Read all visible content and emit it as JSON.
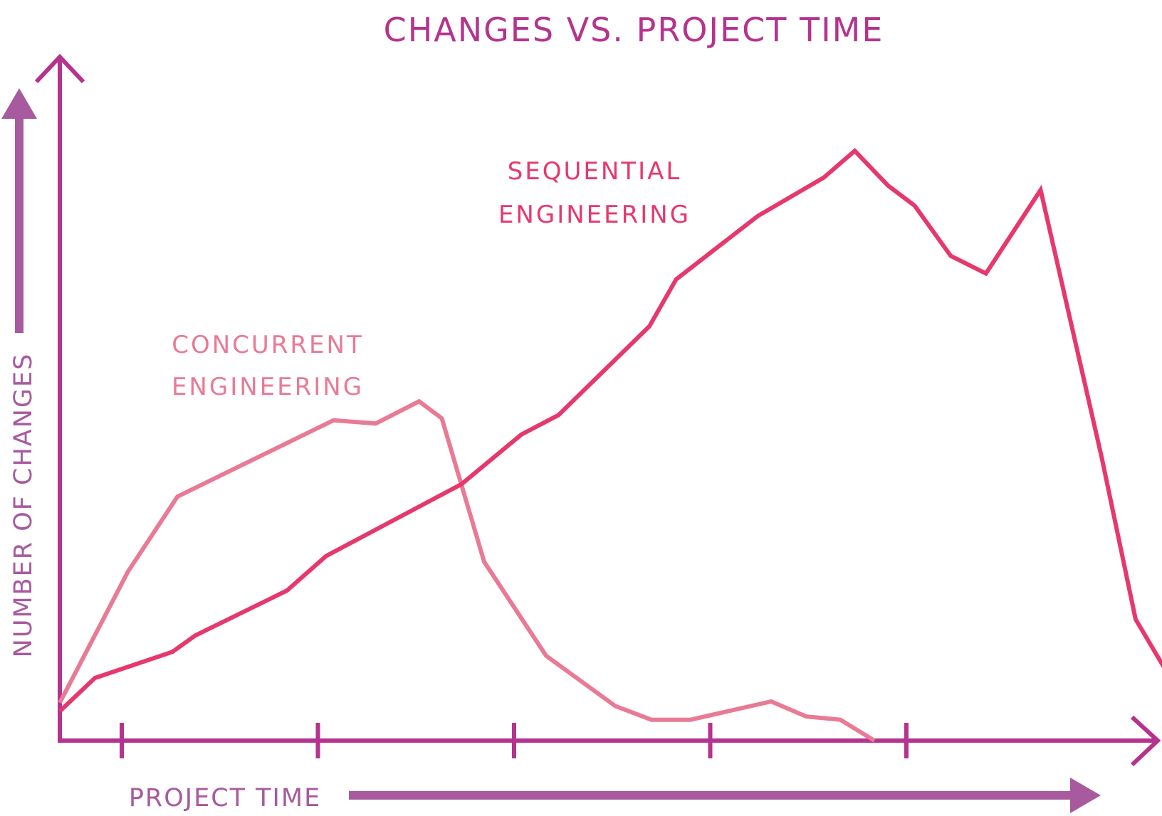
{
  "chart_data": {
    "type": "line",
    "title": "CHANGES VS. PROJECT TIME",
    "xlabel": "PROJECT TIME",
    "ylabel": "NUMBER OF CHANGES",
    "xlim": [
      0,
      100
    ],
    "ylim": [
      0,
      100
    ],
    "x_ticks": [
      6,
      25,
      44,
      63,
      82
    ],
    "grid": false,
    "colors": {
      "axis": "#b5338e",
      "title": "#b5338e",
      "label_arrow": "#a85a9e",
      "sequential": "#e6386c",
      "concurrent": "#e97a96"
    },
    "series": [
      {
        "name": "SEQUENTIAL ENGINEERING",
        "label_lines": [
          "SEQUENTIAL",
          "ENGINEERING"
        ],
        "points": [
          [
            0,
            4.5
          ],
          [
            3.4,
            9.6
          ],
          [
            10.9,
            13.6
          ],
          [
            13.1,
            16.1
          ],
          [
            22.0,
            23.0
          ],
          [
            25.8,
            28.3
          ],
          [
            38.9,
            39.3
          ],
          [
            44.7,
            46.9
          ],
          [
            48.3,
            49.9
          ],
          [
            57.1,
            63.5
          ],
          [
            59.7,
            70.7
          ],
          [
            67.6,
            80.4
          ],
          [
            74.0,
            86.3
          ],
          [
            77.0,
            90.4
          ],
          [
            80.2,
            85.1
          ],
          [
            82.8,
            82.0
          ],
          [
            86.3,
            74.3
          ],
          [
            89.7,
            71.6
          ],
          [
            95.0,
            84.4
          ],
          [
            100.9,
            43.5
          ],
          [
            104.2,
            18.6
          ],
          [
            107.3,
            10.3
          ]
        ]
      },
      {
        "name": "CONCURRENT ENGINEERING",
        "label_lines": [
          "CONCURRENT",
          "ENGINEERING"
        ],
        "points": [
          [
            0,
            5.8
          ],
          [
            6.6,
            25.9
          ],
          [
            11.4,
            37.4
          ],
          [
            26.5,
            49.1
          ],
          [
            30.6,
            48.6
          ],
          [
            34.8,
            52.0
          ],
          [
            37.0,
            49.4
          ],
          [
            41.1,
            27.4
          ],
          [
            47.1,
            13.0
          ],
          [
            53.8,
            5.3
          ],
          [
            57.3,
            3.2
          ],
          [
            61.1,
            3.2
          ],
          [
            68.9,
            6.0
          ],
          [
            72.3,
            3.7
          ],
          [
            75.6,
            3.2
          ],
          [
            78.9,
            0
          ]
        ]
      }
    ]
  }
}
